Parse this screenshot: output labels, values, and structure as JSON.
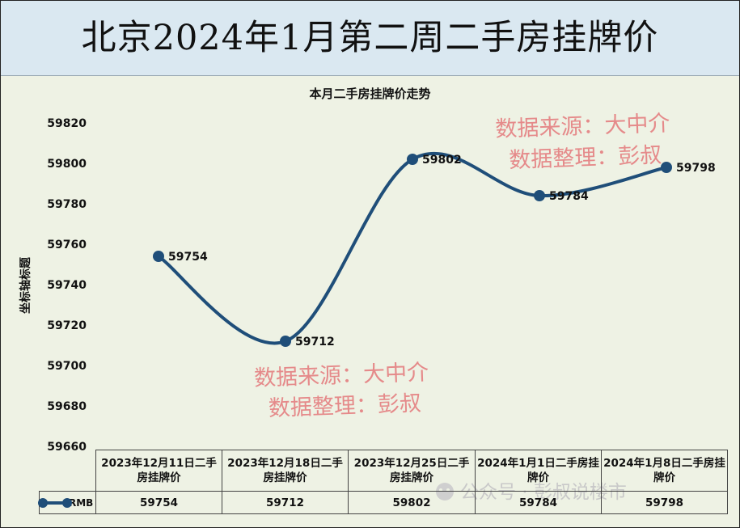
{
  "title": "北京2024年1月第二周二手房挂牌价",
  "watermarks": {
    "line1": "数据来源：大中介",
    "line2": "数据整理：彭叔",
    "footer": "公众号 · 彭叔说楼市"
  },
  "colors": {
    "title_bg": "#dae8f1",
    "plot_bg": "#eef2e4",
    "series": "#1f4e79",
    "watermark": "#e58a8a"
  },
  "chart_data": {
    "type": "line",
    "title": "本月二手房挂牌价走势",
    "ylabel": "坐标轴标题",
    "xlabel": "",
    "ylim": [
      59660,
      59820
    ],
    "y_ticks": [
      59820,
      59800,
      59780,
      59760,
      59740,
      59720,
      59700,
      59680,
      59660
    ],
    "categories": [
      "2023年12月11日二手房挂牌价",
      "2023年12月18日二手房挂牌价",
      "2023年12月25日二手房挂牌价",
      "2024年1月1日二手房挂牌价",
      "2024年1月8日二手房挂牌价"
    ],
    "series": [
      {
        "name": "RMB",
        "values": [
          59754,
          59712,
          59802,
          59784,
          59798
        ]
      }
    ],
    "smooth": true,
    "grid": false,
    "legend": "data-table"
  }
}
